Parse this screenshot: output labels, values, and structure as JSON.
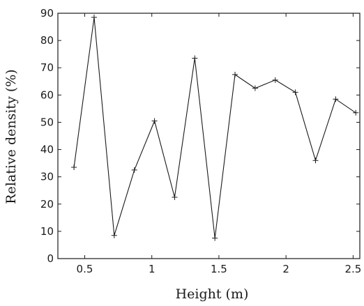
{
  "chart_data": {
    "type": "line",
    "title": "",
    "xlabel": "Height (m)",
    "ylabel": "Relative density (%)",
    "xlim": [
      0.3,
      2.55
    ],
    "ylim": [
      0,
      90
    ],
    "x_ticks": [
      0.5,
      1,
      1.5,
      2,
      2.5
    ],
    "x_tick_labels": [
      "0.5",
      "1",
      "1.5",
      "2",
      "2.5"
    ],
    "y_ticks": [
      0,
      10,
      20,
      30,
      40,
      50,
      60,
      70,
      80,
      90
    ],
    "y_tick_labels": [
      "0",
      "10",
      "20",
      "30",
      "40",
      "50",
      "60",
      "70",
      "80",
      "90"
    ],
    "grid": false,
    "marker": "+",
    "line_color": "#1a1a1a",
    "series": [
      {
        "x": [
          0.42,
          0.57,
          0.72,
          0.87,
          1.02,
          1.17,
          1.32,
          1.47,
          1.62,
          1.77,
          1.92,
          2.07,
          2.22,
          2.37,
          2.52
        ],
        "values": [
          33.5,
          88.5,
          8.5,
          32.5,
          50.5,
          22.5,
          73.5,
          7.5,
          67.5,
          62.5,
          65.5,
          61.0,
          36.0,
          58.5,
          53.5
        ]
      }
    ]
  }
}
